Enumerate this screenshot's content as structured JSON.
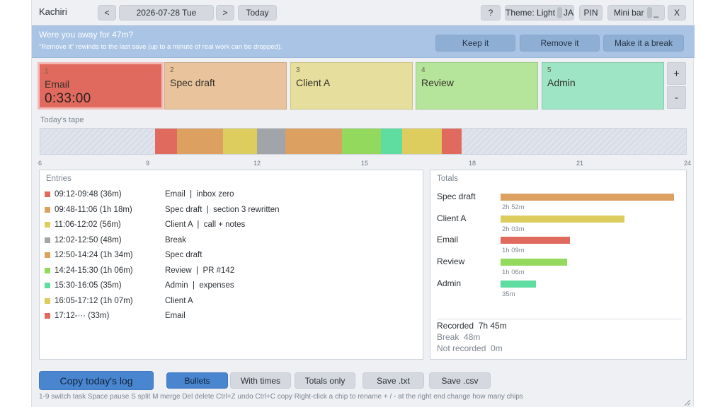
{
  "header": {
    "app_title": "Kachiri",
    "prev_label": "<",
    "date": "2026-07-28 Tue",
    "next_label": ">",
    "today_label": "Today",
    "help_label": "?",
    "theme_label": "Theme: Light",
    "lang_label": "JA",
    "pin_label": "PIN",
    "minibar_label": "Mini bar",
    "minimize_label": "_",
    "close_label": "X"
  },
  "banner": {
    "question": "Were you away for 47m?",
    "note": "\"Remove it\" rewinds to the last save (up to a minute of real work can be dropped).",
    "keep_label": "Keep it",
    "remove_label": "Remove it",
    "break_label": "Make it a break"
  },
  "chips": [
    {
      "num": "1",
      "name": "Email",
      "elapsed": "0:33:00",
      "color": "#e06a5e",
      "active": true
    },
    {
      "num": "2",
      "name": "Spec draft",
      "color": "#e8c39c",
      "active": false
    },
    {
      "num": "3",
      "name": "Client A",
      "color": "#e6de9c",
      "active": false
    },
    {
      "num": "4",
      "name": "Review",
      "color": "#b5e59a",
      "active": false
    },
    {
      "num": "5",
      "name": "Admin",
      "color": "#9ee5c5",
      "active": false
    }
  ],
  "chip_controls": {
    "add_label": "+",
    "remove_label": "-"
  },
  "tape": {
    "label": "Today's tape",
    "start_hour": 6,
    "end_hour": 24,
    "tick_labels": [
      "6",
      "9",
      "12",
      "15",
      "18",
      "21",
      "24"
    ],
    "segments": [
      {
        "start": "09:12",
        "end": "09:48",
        "color": "#e06a5e"
      },
      {
        "start": "09:48",
        "end": "11:06",
        "color": "#dca060"
      },
      {
        "start": "11:06",
        "end": "12:02",
        "color": "#ddcc5e"
      },
      {
        "start": "12:02",
        "end": "12:50",
        "color": "#a1a4a9"
      },
      {
        "start": "12:50",
        "end": "14:24",
        "color": "#dca060"
      },
      {
        "start": "14:24",
        "end": "15:30",
        "color": "#93d95e"
      },
      {
        "start": "15:30",
        "end": "16:05",
        "color": "#5fdc9f"
      },
      {
        "start": "16:05",
        "end": "17:12",
        "color": "#ddcc5e"
      },
      {
        "start": "17:12",
        "end": "17:45",
        "color": "#e06a5e"
      }
    ]
  },
  "entries": {
    "title": "Entries",
    "rows": [
      {
        "time": "09:12-09:48 (36m)",
        "desc": "Email  |  inbox zero",
        "color": "#e06a5e"
      },
      {
        "time": "09:48-11:06 (1h 18m)",
        "desc": "Spec draft  |  section 3 rewritten",
        "color": "#dca060"
      },
      {
        "time": "11:06-12:02 (56m)",
        "desc": "Client A  |  call + notes",
        "color": "#ddcc5e"
      },
      {
        "time": "12:02-12:50 (48m)",
        "desc": "Break",
        "color": "#a1a4a9"
      },
      {
        "time": "12:50-14:24 (1h 34m)",
        "desc": "Spec draft",
        "color": "#dca060"
      },
      {
        "time": "14:24-15:30 (1h 06m)",
        "desc": "Review  |  PR #142",
        "color": "#93d95e"
      },
      {
        "time": "15:30-16:05 (35m)",
        "desc": "Admin  |  expenses",
        "color": "#5fdc9f"
      },
      {
        "time": "16:05-17:12 (1h 07m)",
        "desc": "Client A",
        "color": "#ddcc5e"
      },
      {
        "time": "17:12-··· (33m)",
        "desc": "Email",
        "color": "#e06a5e"
      }
    ]
  },
  "totals": {
    "title": "Totals",
    "rows": [
      {
        "name": "Spec draft",
        "duration": "2h 52m",
        "minutes": 172,
        "color": "#dca060"
      },
      {
        "name": "Client A",
        "duration": "2h 03m",
        "minutes": 123,
        "color": "#ddcc5e"
      },
      {
        "name": "Email",
        "duration": "1h 09m",
        "minutes": 69,
        "color": "#e06a5e"
      },
      {
        "name": "Review",
        "duration": "1h 06m",
        "minutes": 66,
        "color": "#93d95e"
      },
      {
        "name": "Admin",
        "duration": "35m",
        "minutes": 35,
        "color": "#5fdc9f"
      }
    ],
    "recorded_label": "Recorded",
    "recorded_value": "7h 45m",
    "break_label": "Break",
    "break_value": "48m",
    "not_recorded_label": "Not recorded",
    "not_recorded_value": "0m"
  },
  "footer": {
    "copy_label": "Copy today's log",
    "bullets_label": "Bullets",
    "with_times_label": "With times",
    "totals_only_label": "Totals only",
    "save_txt_label": "Save .txt",
    "save_csv_label": "Save .csv",
    "hints": "1-9 switch task   Space pause   S split   M merge   Del delete   Ctrl+Z undo   Ctrl+C copy   Right-click a chip to rename   + / - at the right end change how many chips"
  },
  "colors": {
    "accent": "#4a86cf",
    "banner": "#a9c4e4",
    "active_chip_border": "#f4b9b6"
  }
}
